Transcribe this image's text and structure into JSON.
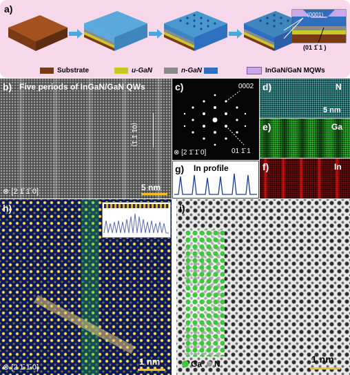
{
  "panel_a": {
    "label": "a)",
    "surface_label": "(0001)",
    "direction_label": "(01 1̄ 1 )",
    "legend": [
      {
        "label": "Substrate",
        "color": "#7a3a14"
      },
      {
        "label": "u-GaN",
        "color": "#c8c82a"
      },
      {
        "label": "n-GaN",
        "color": "#8a8a8a"
      },
      {
        "label": "",
        "color": "#2f6fc0"
      },
      {
        "label": "InGaN/GaN MQWs",
        "color": "#c8a8e8"
      }
    ]
  },
  "panel_b": {
    "label": "b)",
    "title": "Five periods of InGaN/GaN QWs",
    "plane_label": "(01 1̄ 1)",
    "zone_axis": "⊗ [2 1̄ 1̄ 0]",
    "scale_bar": "5 nm"
  },
  "panel_c": {
    "label": "c)",
    "spot_top": "0002",
    "spot_bottom": "01 1̄ 1",
    "zone_axis": "⊗ [2 1̄ 1̄ 0]"
  },
  "panel_d": {
    "label": "d)",
    "element": "N",
    "scale_bar": "5 nm"
  },
  "panel_e": {
    "label": "e)",
    "element": "Ga"
  },
  "panel_f": {
    "label": "f)",
    "element": "In"
  },
  "panel_g": {
    "label": "g)",
    "title": "In profile"
  },
  "panel_h": {
    "label": "h)",
    "zone_axis": "⊗ [2 1̄ 1̄ 0]",
    "scale_bar": "1 nm"
  },
  "panel_i": {
    "label": "i)",
    "legend_ga": "Ga",
    "legend_n": "N",
    "scale_bar": "1 nm"
  }
}
